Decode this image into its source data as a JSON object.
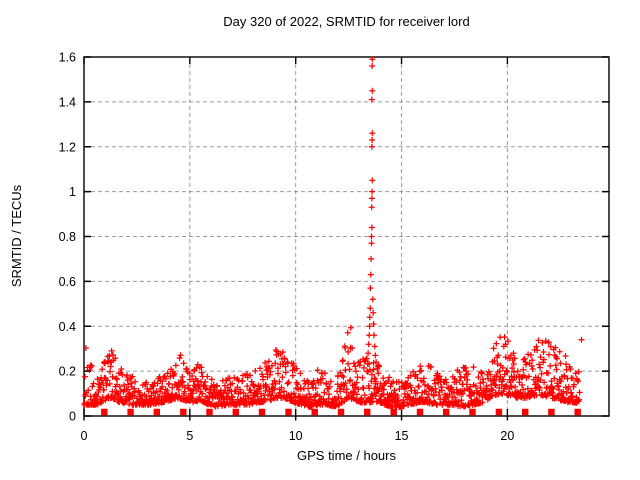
{
  "chart_data": {
    "type": "scatter",
    "title": "Day 320 of 2022, SRMTID for receiver lord",
    "xlabel": "GPS time / hours",
    "ylabel": "SRMTID / TECUs",
    "xlim": [
      0,
      24.8
    ],
    "ylim": [
      0,
      1.6
    ],
    "xticks": [
      0,
      5,
      10,
      15,
      20
    ],
    "xtick_labels": [
      "0",
      "5",
      "10",
      "15",
      "20"
    ],
    "yticks": [
      0,
      0.2,
      0.4,
      0.6,
      0.8,
      1.0,
      1.2,
      1.4,
      1.6
    ],
    "ytick_labels": [
      "0",
      "0.2",
      "0.4",
      "0.6",
      "0.8",
      "1",
      "1.2",
      "1.4",
      "1.6"
    ],
    "grid": true,
    "legend": "none",
    "colors": {
      "marker": "#ff0000",
      "grid": "#9a9a9a",
      "border": "#000000",
      "background": "#ffffff"
    },
    "series": [
      {
        "name": "srmtid",
        "marker": "plus",
        "sample_step_hours": 0.015,
        "seed": 320,
        "envelope": [
          [
            0.0,
            0.05,
            0.34
          ],
          [
            0.3,
            0.05,
            0.24
          ],
          [
            0.7,
            0.05,
            0.16
          ],
          [
            1.0,
            0.07,
            0.26
          ],
          [
            1.3,
            0.08,
            0.32
          ],
          [
            1.7,
            0.06,
            0.22
          ],
          [
            2.2,
            0.05,
            0.18
          ],
          [
            2.7,
            0.05,
            0.16
          ],
          [
            3.2,
            0.05,
            0.17
          ],
          [
            3.7,
            0.06,
            0.18
          ],
          [
            4.1,
            0.07,
            0.22
          ],
          [
            4.4,
            0.08,
            0.3
          ],
          [
            4.7,
            0.07,
            0.26
          ],
          [
            5.1,
            0.06,
            0.2
          ],
          [
            5.5,
            0.07,
            0.25
          ],
          [
            5.9,
            0.05,
            0.18
          ],
          [
            6.3,
            0.04,
            0.15
          ],
          [
            6.8,
            0.05,
            0.17
          ],
          [
            7.3,
            0.05,
            0.18
          ],
          [
            7.8,
            0.05,
            0.2
          ],
          [
            8.3,
            0.06,
            0.22
          ],
          [
            8.8,
            0.07,
            0.26
          ],
          [
            9.1,
            0.08,
            0.3
          ],
          [
            9.5,
            0.08,
            0.28
          ],
          [
            9.9,
            0.06,
            0.25
          ],
          [
            10.3,
            0.05,
            0.18
          ],
          [
            10.7,
            0.04,
            0.16
          ],
          [
            11.1,
            0.05,
            0.22
          ],
          [
            11.5,
            0.05,
            0.18
          ],
          [
            11.9,
            0.04,
            0.16
          ],
          [
            12.2,
            0.06,
            0.25
          ],
          [
            12.5,
            0.08,
            0.45
          ],
          [
            12.8,
            0.07,
            0.35
          ],
          [
            13.1,
            0.06,
            0.25
          ],
          [
            13.4,
            0.06,
            0.28
          ],
          [
            13.8,
            0.06,
            0.25
          ],
          [
            14.2,
            0.05,
            0.2
          ],
          [
            14.6,
            0.04,
            0.16
          ],
          [
            15.0,
            0.04,
            0.15
          ],
          [
            15.4,
            0.05,
            0.18
          ],
          [
            15.8,
            0.06,
            0.23
          ],
          [
            16.2,
            0.06,
            0.27
          ],
          [
            16.6,
            0.05,
            0.2
          ],
          [
            17.0,
            0.05,
            0.18
          ],
          [
            17.4,
            0.05,
            0.2
          ],
          [
            17.9,
            0.04,
            0.22
          ],
          [
            18.4,
            0.05,
            0.22
          ],
          [
            18.9,
            0.06,
            0.2
          ],
          [
            19.3,
            0.09,
            0.3
          ],
          [
            19.7,
            0.1,
            0.37
          ],
          [
            20.1,
            0.09,
            0.33
          ],
          [
            20.5,
            0.08,
            0.26
          ],
          [
            20.9,
            0.08,
            0.28
          ],
          [
            21.3,
            0.09,
            0.33
          ],
          [
            21.7,
            0.09,
            0.35
          ],
          [
            22.1,
            0.08,
            0.33
          ],
          [
            22.5,
            0.07,
            0.3
          ],
          [
            22.9,
            0.06,
            0.25
          ],
          [
            23.2,
            0.06,
            0.22
          ],
          [
            23.42,
            0.05,
            0.2
          ]
        ],
        "spike_points": [
          [
            13.42,
            0.28
          ],
          [
            13.45,
            0.32
          ],
          [
            13.47,
            0.36
          ],
          [
            13.49,
            0.4
          ],
          [
            13.5,
            0.44
          ],
          [
            13.52,
            0.48
          ],
          [
            13.53,
            0.57
          ],
          [
            13.55,
            0.63
          ],
          [
            13.56,
            0.7
          ],
          [
            13.58,
            0.77
          ],
          [
            13.58,
            0.8
          ],
          [
            13.6,
            0.84
          ],
          [
            13.59,
            0.93
          ],
          [
            13.6,
            0.97
          ],
          [
            13.61,
            1.0
          ],
          [
            13.62,
            1.05
          ],
          [
            13.6,
            1.2
          ],
          [
            13.61,
            1.23
          ],
          [
            13.62,
            1.26
          ],
          [
            13.6,
            1.41
          ],
          [
            13.62,
            1.45
          ],
          [
            13.61,
            1.56
          ],
          [
            13.62,
            1.59
          ],
          [
            13.64,
            0.52
          ],
          [
            13.66,
            0.46
          ],
          [
            13.68,
            0.41
          ],
          [
            13.7,
            0.36
          ],
          [
            13.73,
            0.31
          ],
          [
            13.76,
            0.27
          ],
          [
            13.8,
            0.24
          ],
          [
            13.85,
            0.21
          ],
          [
            13.9,
            0.19
          ],
          [
            23.5,
            0.34
          ]
        ]
      },
      {
        "name": "interval-markers",
        "marker": "filled-square",
        "y": 0.018,
        "x": [
          0.96,
          2.2,
          3.44,
          4.69,
          5.93,
          7.17,
          8.41,
          9.66,
          10.9,
          12.14,
          13.38,
          14.63,
          15.87,
          17.11,
          18.35,
          19.6,
          20.84,
          22.08,
          23.32
        ]
      }
    ]
  }
}
